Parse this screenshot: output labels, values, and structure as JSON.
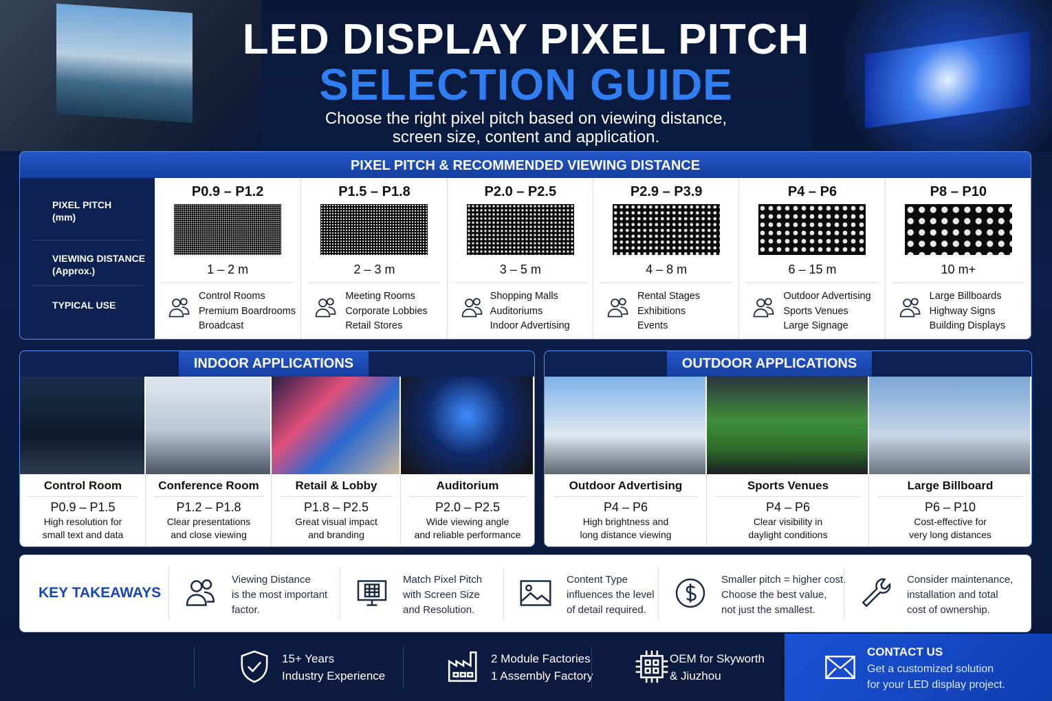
{
  "header": {
    "title_line1": "LED DISPLAY PIXEL PITCH",
    "title_line2": "SELECTION GUIDE",
    "subtitle_lines": [
      "Choose the right pixel pitch based on viewing distance,",
      "screen size, content and application."
    ]
  },
  "pitch_table": {
    "title": "PIXEL PITCH & RECOMMENDED VIEWING DISTANCE",
    "row_labels": [
      [
        "PIXEL PITCH",
        "(mm)"
      ],
      [
        "VIEWING DISTANCE",
        "(Approx.)"
      ],
      [
        "TYPICAL USE"
      ]
    ],
    "columns": [
      {
        "pitch": "P0.9 – P1.2",
        "distance": "1 – 2 m",
        "uses": [
          "Control Rooms",
          "Premium Boardrooms",
          "Broadcast"
        ]
      },
      {
        "pitch": "P1.5 – P1.8",
        "distance": "2 – 3 m",
        "uses": [
          "Meeting Rooms",
          "Corporate Lobbies",
          "Retail Stores"
        ]
      },
      {
        "pitch": "P2.0 – P2.5",
        "distance": "3 – 5 m",
        "uses": [
          "Shopping Malls",
          "Auditoriums",
          "Indoor Advertising"
        ]
      },
      {
        "pitch": "P2.9 – P3.9",
        "distance": "4 – 8 m",
        "uses": [
          "Rental Stages",
          "Exhibitions",
          "Events"
        ]
      },
      {
        "pitch": "P4 – P6",
        "distance": "6 – 15 m",
        "uses": [
          "Outdoor Advertising",
          "Sports Venues",
          "Large Signage"
        ]
      },
      {
        "pitch": "P8 – P10",
        "distance": "10 m+",
        "uses": [
          "Large Billboards",
          "Highway Signs",
          "Building Displays"
        ]
      }
    ]
  },
  "indoor": {
    "title": "INDOOR APPLICATIONS",
    "items": [
      {
        "name": "Control Room",
        "pitch": "P0.9 – P1.5",
        "desc": [
          "High resolution for",
          "small text and data"
        ]
      },
      {
        "name": "Conference Room",
        "pitch": "P1.2 – P1.8",
        "desc": [
          "Clear presentations",
          "and close viewing"
        ]
      },
      {
        "name": "Retail & Lobby",
        "pitch": "P1.8 – P2.5",
        "desc": [
          "Great visual impact",
          "and branding"
        ]
      },
      {
        "name": "Auditorium",
        "pitch": "P2.0 – P2.5",
        "desc": [
          "Wide viewing angle",
          "and reliable performance"
        ]
      }
    ]
  },
  "outdoor": {
    "title": "OUTDOOR APPLICATIONS",
    "items": [
      {
        "name": "Outdoor Advertising",
        "pitch": "P4 – P6",
        "desc": [
          "High brightness and",
          "long distance viewing"
        ]
      },
      {
        "name": "Sports Venues",
        "pitch": "P4 – P6",
        "desc": [
          "Clear visibility in",
          "daylight conditions"
        ]
      },
      {
        "name": "Large Billboard",
        "pitch": "P6 – P10",
        "desc": [
          "Cost-effective for",
          "very long distances"
        ]
      }
    ]
  },
  "takeaways": {
    "title": "KEY TAKEAWAYS",
    "items": [
      [
        "Viewing Distance",
        "is the most important",
        "factor."
      ],
      [
        "Match Pixel Pitch",
        "with Screen Size",
        "and Resolution."
      ],
      [
        "Content Type",
        "influences the level",
        "of detail required."
      ],
      [
        "Smaller pitch = higher cost.",
        "Choose the best value,",
        "not just the smallest."
      ],
      [
        "Consider maintenance,",
        "installation and total",
        "cost of ownership."
      ]
    ]
  },
  "footer": {
    "items": [
      [
        "15+ Years",
        "Industry Experience"
      ],
      [
        "2 Module Factories",
        "1 Assembly Factory"
      ],
      [
        "OEM for Skyworth",
        "& Jiuzhou"
      ]
    ],
    "contact": {
      "title": "CONTACT US",
      "lines": [
        "Get a customized solution",
        "for your LED display project."
      ]
    }
  }
}
